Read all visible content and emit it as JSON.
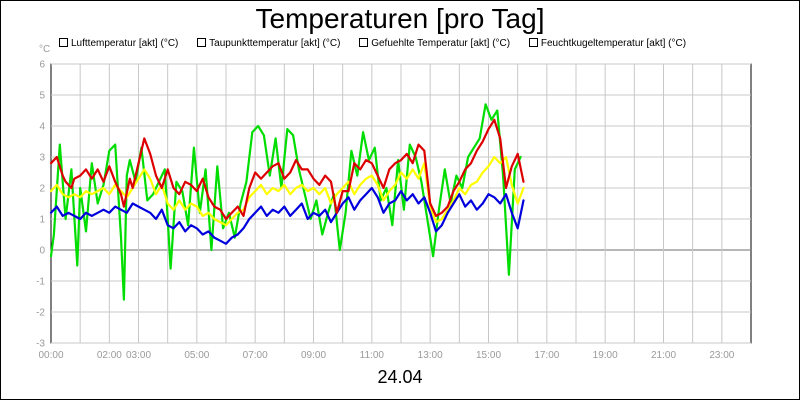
{
  "chart_data": {
    "type": "line",
    "title": "Temperaturen [pro Tag]",
    "date_label": "24.04",
    "ylabel": "°C",
    "ylim": [
      -3,
      6
    ],
    "yticks": [
      "-3",
      "-2",
      "-1",
      "0",
      "1",
      "2",
      "3",
      "4",
      "5",
      "6"
    ],
    "xlim": [
      0,
      24
    ],
    "xticks": [
      "00:00",
      "02:00",
      "03:00",
      "05:00",
      "07:00",
      "09:00",
      "11:00",
      "13:00",
      "15:00",
      "17:00",
      "19:00",
      "21:00",
      "23:00"
    ],
    "xtick_hours": [
      0,
      2,
      3,
      5,
      7,
      9,
      11,
      13,
      15,
      17,
      19,
      21,
      23
    ],
    "series": [
      {
        "name": "Lufttemperatur [akt] (°C)",
        "color": "#dd0000",
        "x": [
          0,
          0.2,
          0.4,
          0.5,
          0.7,
          0.8,
          1.0,
          1.2,
          1.4,
          1.6,
          1.8,
          2.0,
          2.2,
          2.4,
          2.5,
          2.7,
          2.8,
          3.0,
          3.2,
          3.4,
          3.6,
          3.8,
          4.0,
          4.2,
          4.4,
          4.6,
          4.8,
          5.0,
          5.2,
          5.4,
          5.6,
          5.8,
          6.0,
          6.2,
          6.4,
          6.6,
          6.8,
          7.0,
          7.2,
          7.4,
          7.6,
          7.8,
          8.0,
          8.2,
          8.4,
          8.6,
          8.8,
          9.0,
          9.2,
          9.4,
          9.6,
          9.8,
          10.0,
          10.2,
          10.4,
          10.6,
          10.8,
          11.0,
          11.2,
          11.4,
          11.6,
          11.8,
          12.0,
          12.2,
          12.4,
          12.6,
          12.8,
          13.0,
          13.2,
          13.4,
          13.6,
          13.8,
          14.0,
          14.2,
          14.4,
          14.6,
          14.8,
          15.0,
          15.2,
          15.4,
          15.6,
          15.8,
          16.0,
          16.2
        ],
        "values": [
          2.8,
          3.0,
          2.4,
          2.2,
          2.0,
          2.3,
          2.4,
          2.6,
          2.3,
          2.6,
          2.2,
          2.7,
          2.2,
          1.8,
          1.4,
          2.3,
          2.0,
          2.8,
          3.6,
          3.1,
          2.4,
          2.0,
          2.6,
          2.0,
          1.8,
          2.2,
          2.1,
          1.9,
          2.3,
          1.7,
          1.4,
          1.3,
          1.0,
          1.2,
          1.4,
          1.1,
          2.0,
          2.5,
          2.3,
          2.5,
          2.7,
          2.8,
          2.3,
          2.5,
          2.9,
          2.6,
          2.6,
          2.3,
          2.1,
          2.4,
          2.2,
          1.2,
          1.9,
          1.9,
          2.8,
          2.6,
          2.9,
          2.8,
          2.4,
          2.0,
          2.6,
          2.8,
          2.9,
          3.1,
          2.8,
          3.4,
          3.2,
          1.5,
          1.1,
          1.2,
          1.4,
          1.9,
          2.2,
          2.6,
          2.8,
          3.2,
          3.5,
          3.9,
          4.2,
          3.6,
          2.0,
          2.7,
          3.1,
          2.2
        ]
      },
      {
        "name": "Taupunkttemperatur [akt] (°C)",
        "color": "#0000dd",
        "x": [
          0,
          0.2,
          0.4,
          0.6,
          0.8,
          1.0,
          1.2,
          1.4,
          1.6,
          1.8,
          2.0,
          2.2,
          2.4,
          2.6,
          2.8,
          3.0,
          3.2,
          3.4,
          3.6,
          3.8,
          4.0,
          4.2,
          4.4,
          4.6,
          4.8,
          5.0,
          5.2,
          5.4,
          5.6,
          5.8,
          6.0,
          6.2,
          6.4,
          6.6,
          6.8,
          7.0,
          7.2,
          7.4,
          7.6,
          7.8,
          8.0,
          8.2,
          8.4,
          8.6,
          8.8,
          9.0,
          9.2,
          9.4,
          9.6,
          9.8,
          10.0,
          10.2,
          10.4,
          10.6,
          10.8,
          11.0,
          11.2,
          11.4,
          11.6,
          11.8,
          12.0,
          12.2,
          12.4,
          12.6,
          12.8,
          13.0,
          13.2,
          13.4,
          13.6,
          13.8,
          14.0,
          14.2,
          14.4,
          14.6,
          14.8,
          15.0,
          15.2,
          15.4,
          15.6,
          15.8,
          16.0,
          16.2
        ],
        "values": [
          1.2,
          1.4,
          1.1,
          1.2,
          1.1,
          1.0,
          1.2,
          1.1,
          1.2,
          1.3,
          1.2,
          1.4,
          1.3,
          1.2,
          1.5,
          1.4,
          1.3,
          1.2,
          1.0,
          1.3,
          0.8,
          0.7,
          0.9,
          0.6,
          0.8,
          0.7,
          0.5,
          0.6,
          0.4,
          0.3,
          0.2,
          0.4,
          0.5,
          0.7,
          1.0,
          1.2,
          1.4,
          1.1,
          1.3,
          1.2,
          1.4,
          1.1,
          1.3,
          1.5,
          1.0,
          1.2,
          1.1,
          1.3,
          0.9,
          1.2,
          1.5,
          1.7,
          1.3,
          1.6,
          1.8,
          2.0,
          1.7,
          1.2,
          1.5,
          1.6,
          1.9,
          1.6,
          1.8,
          1.5,
          1.7,
          1.2,
          0.6,
          0.8,
          1.2,
          1.5,
          1.8,
          1.4,
          1.6,
          1.3,
          1.5,
          1.8,
          1.7,
          1.5,
          1.8,
          1.2,
          0.7,
          1.6
        ]
      },
      {
        "name": "Gefuehlte Temperatur [akt] (°C)",
        "color": "#00dd00",
        "x": [
          0,
          0.1,
          0.3,
          0.5,
          0.7,
          0.9,
          1.0,
          1.2,
          1.4,
          1.6,
          1.8,
          2.0,
          2.2,
          2.4,
          2.5,
          2.6,
          2.7,
          2.9,
          3.1,
          3.3,
          3.5,
          3.7,
          3.9,
          4.1,
          4.3,
          4.5,
          4.7,
          4.9,
          5.1,
          5.3,
          5.5,
          5.7,
          5.9,
          6.1,
          6.3,
          6.5,
          6.7,
          6.9,
          7.1,
          7.3,
          7.5,
          7.7,
          7.9,
          8.1,
          8.3,
          8.5,
          8.7,
          8.9,
          9.1,
          9.3,
          9.5,
          9.7,
          9.9,
          10.1,
          10.3,
          10.5,
          10.7,
          10.9,
          11.1,
          11.3,
          11.5,
          11.7,
          11.9,
          12.1,
          12.3,
          12.5,
          12.7,
          12.9,
          13.1,
          13.3,
          13.5,
          13.7,
          13.9,
          14.1,
          14.3,
          14.5,
          14.7,
          14.9,
          15.1,
          15.3,
          15.5,
          15.7,
          15.9,
          16.1
        ],
        "values": [
          -0.2,
          0.5,
          3.4,
          1.0,
          2.6,
          -0.5,
          2.0,
          0.6,
          2.8,
          1.5,
          2.1,
          3.2,
          3.4,
          0.4,
          -1.6,
          2.4,
          2.9,
          2.2,
          3.3,
          1.6,
          1.8,
          2.2,
          2.6,
          -0.6,
          2.2,
          1.9,
          0.8,
          3.3,
          1.2,
          2.6,
          0.0,
          2.7,
          0.7,
          1.2,
          0.4,
          1.5,
          2.2,
          3.8,
          4.0,
          3.7,
          2.4,
          3.6,
          2.0,
          3.9,
          3.7,
          2.6,
          1.8,
          1.0,
          1.6,
          0.5,
          1.2,
          1.8,
          0.0,
          1.2,
          3.2,
          2.4,
          3.8,
          2.9,
          3.3,
          1.6,
          2.0,
          0.8,
          2.9,
          1.3,
          3.4,
          3.0,
          2.2,
          1.0,
          -0.2,
          1.3,
          2.6,
          1.5,
          2.4,
          2.0,
          3.0,
          3.3,
          3.6,
          4.7,
          4.2,
          4.5,
          2.4,
          -0.8,
          2.6,
          3.0
        ]
      },
      {
        "name": "Feuchtkugeltemperatur [akt] (°C)",
        "color": "#ffff00",
        "x": [
          0,
          0.2,
          0.4,
          0.6,
          0.8,
          1.0,
          1.2,
          1.4,
          1.6,
          1.8,
          2.0,
          2.2,
          2.4,
          2.6,
          2.8,
          3.0,
          3.2,
          3.4,
          3.6,
          3.8,
          4.0,
          4.2,
          4.4,
          4.6,
          4.8,
          5.0,
          5.2,
          5.4,
          5.6,
          5.8,
          6.0,
          6.2,
          6.4,
          6.6,
          6.8,
          7.0,
          7.2,
          7.4,
          7.6,
          7.8,
          8.0,
          8.2,
          8.4,
          8.6,
          8.8,
          9.0,
          9.2,
          9.4,
          9.6,
          9.8,
          10.0,
          10.2,
          10.4,
          10.6,
          10.8,
          11.0,
          11.2,
          11.4,
          11.6,
          11.8,
          12.0,
          12.2,
          12.4,
          12.6,
          12.8,
          13.0,
          13.2,
          13.4,
          13.6,
          13.8,
          14.0,
          14.2,
          14.4,
          14.6,
          14.8,
          15.0,
          15.2,
          15.4,
          15.6,
          15.8,
          16.0,
          16.2
        ],
        "values": [
          1.9,
          2.1,
          1.8,
          1.7,
          1.8,
          1.7,
          1.9,
          1.8,
          1.9,
          2.0,
          1.8,
          2.1,
          1.9,
          1.7,
          2.0,
          2.3,
          2.6,
          2.3,
          1.8,
          2.1,
          1.5,
          1.3,
          1.6,
          1.3,
          1.5,
          1.4,
          1.1,
          1.2,
          1.0,
          0.9,
          0.8,
          1.0,
          1.2,
          1.3,
          1.7,
          1.9,
          2.1,
          1.8,
          2.0,
          1.9,
          2.1,
          1.8,
          2.0,
          2.1,
          1.9,
          2.0,
          1.8,
          2.0,
          1.5,
          1.8,
          2.0,
          2.2,
          1.8,
          2.1,
          2.3,
          2.4,
          2.1,
          1.6,
          1.9,
          2.1,
          2.5,
          2.3,
          2.6,
          2.3,
          2.8,
          1.4,
          0.9,
          1.0,
          1.3,
          1.6,
          2.0,
          1.8,
          2.1,
          2.2,
          2.5,
          2.7,
          3.0,
          2.8,
          3.0,
          2.1,
          1.5,
          2.0
        ]
      }
    ]
  }
}
